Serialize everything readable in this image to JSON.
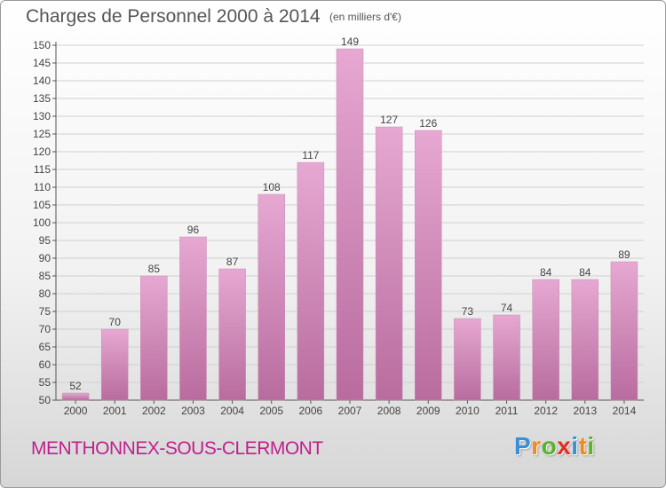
{
  "chart_data": {
    "type": "bar",
    "title": "Charges de Personnel 2000 à 2014",
    "subtitle": "(en milliers d'€)",
    "categories": [
      "2000",
      "2001",
      "2002",
      "2003",
      "2004",
      "2005",
      "2006",
      "2007",
      "2008",
      "2009",
      "2010",
      "2011",
      "2012",
      "2013",
      "2014"
    ],
    "values": [
      52,
      70,
      85,
      96,
      87,
      108,
      117,
      149,
      127,
      126,
      73,
      74,
      84,
      84,
      89
    ],
    "data_labels": [
      "52",
      "70",
      "85",
      "96",
      "87",
      "108",
      "117",
      "149",
      "127",
      "126",
      "73",
      "74",
      "84",
      "84",
      "89"
    ],
    "y_ticks": [
      "50",
      "55",
      "60",
      "65",
      "70",
      "75",
      "80",
      "85",
      "90",
      "95",
      "100",
      "105",
      "110",
      "115",
      "120",
      "125",
      "130",
      "135",
      "140",
      "145",
      "150"
    ],
    "ylim": [
      50,
      150
    ],
    "y_step": 5,
    "grid": true,
    "bar_color_top": "#e6a8d2",
    "bar_color_bottom": "#b86c9e"
  },
  "footer": {
    "commune": "MENTHONNEX-SOUS-CLERMONT",
    "commune_color": "#c0208e"
  },
  "brand": {
    "letters": [
      "P",
      "r",
      "o",
      "x",
      "i",
      "t",
      "i"
    ],
    "colors": [
      "#3a8fd6",
      "#f08a1c",
      "#58b32c",
      "#e03020",
      "#3a8fd6",
      "#f08a1c",
      "#58b32c"
    ]
  }
}
